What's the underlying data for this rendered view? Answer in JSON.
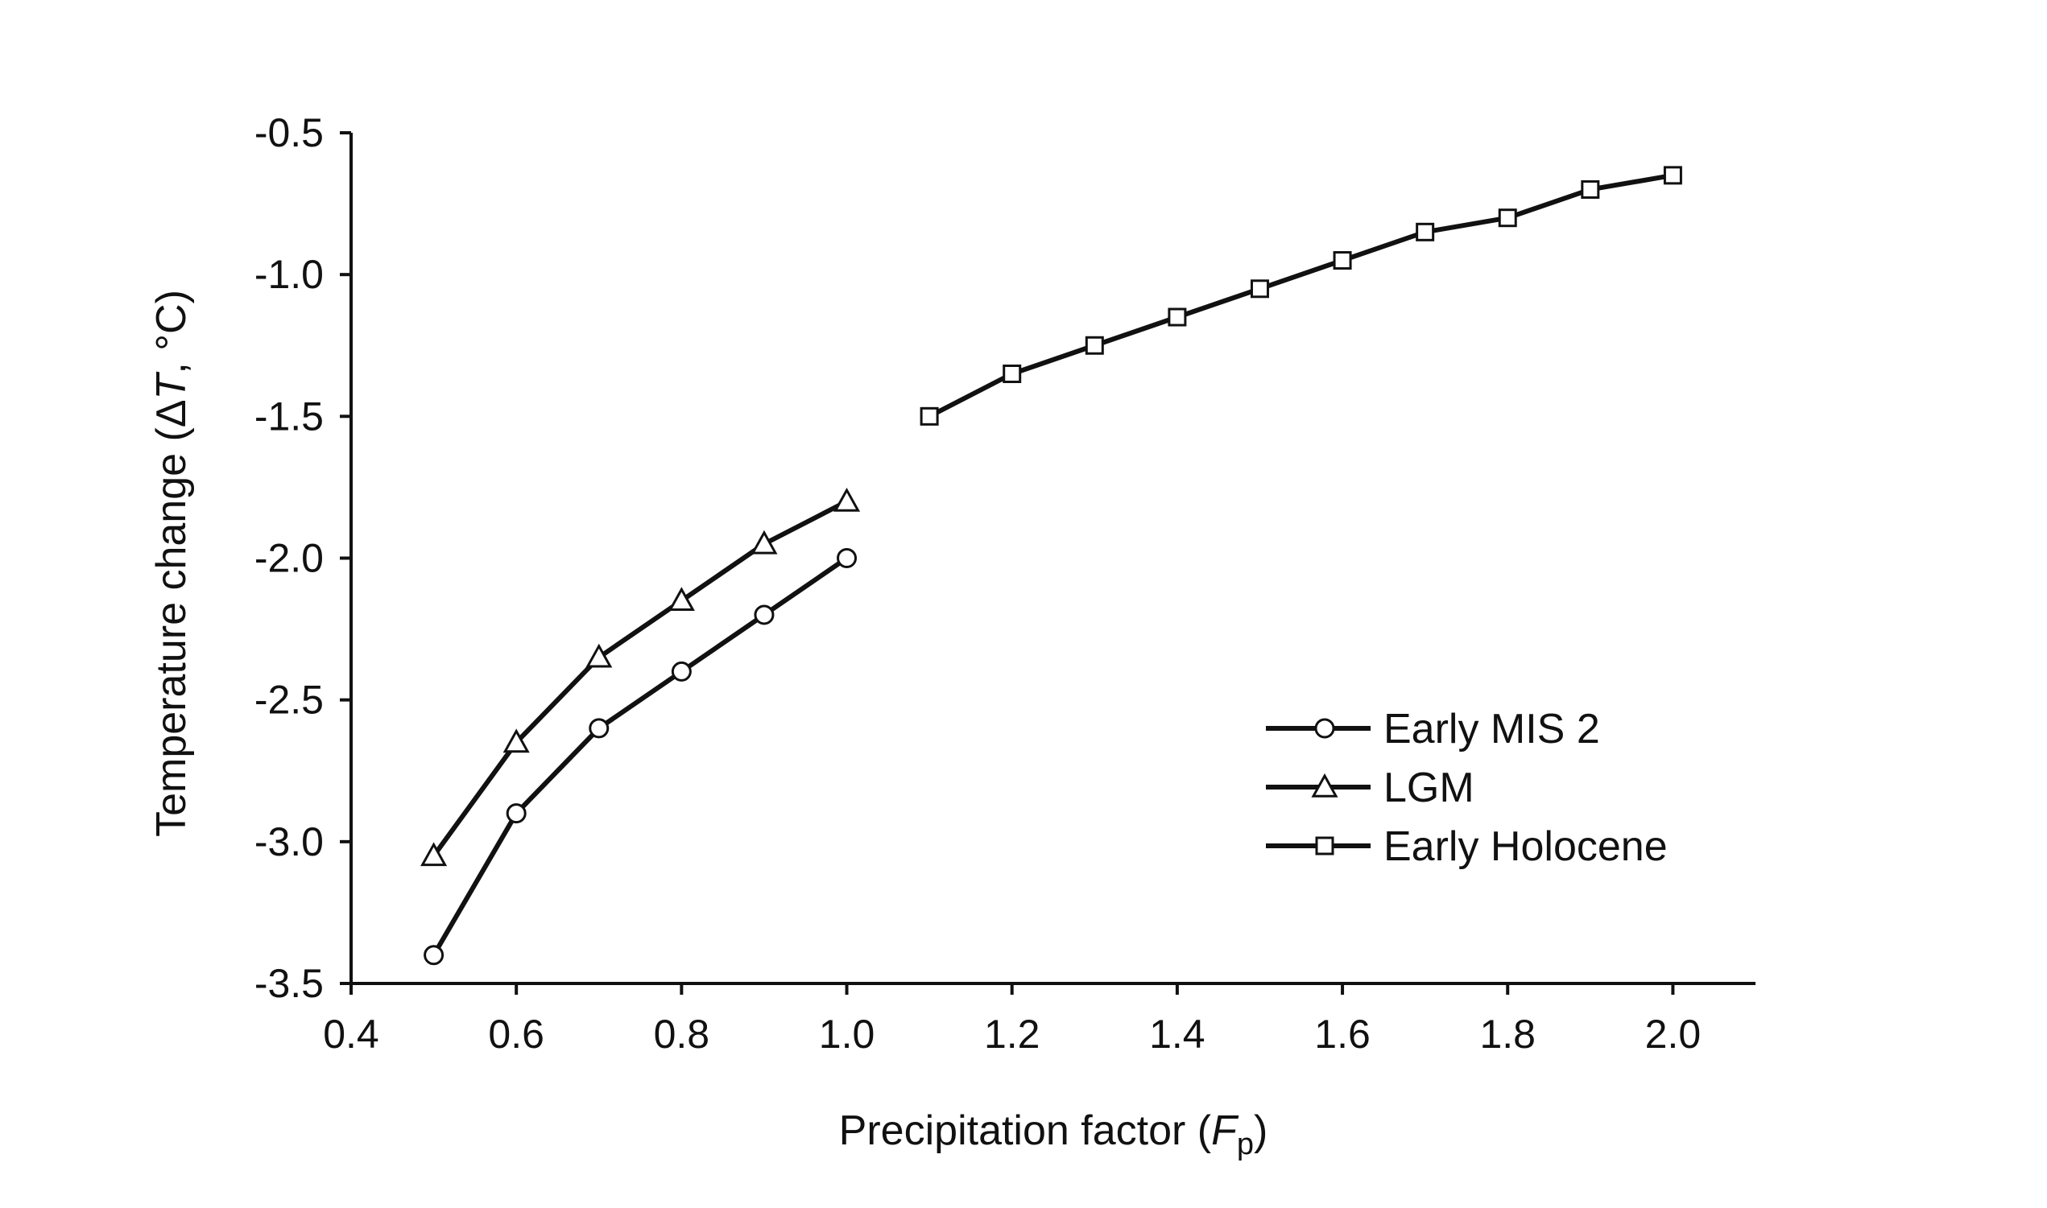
{
  "chart_data": {
    "type": "line",
    "title": "",
    "xlabel_prefix": "Precipitation factor (",
    "xlabel_var": "F",
    "xlabel_sub": "p",
    "xlabel_suffix": ")",
    "ylabel_prefix": "Temperature change (Δ",
    "ylabel_var": "T",
    "ylabel_suffix": ", °C)",
    "xlim": [
      0.4,
      2.1
    ],
    "ylim": [
      -3.5,
      -0.5
    ],
    "xticks": [
      0.4,
      0.6,
      0.8,
      1.0,
      1.2,
      1.4,
      1.6,
      1.8,
      2.0
    ],
    "xtick_labels": [
      "0.4",
      "0.6",
      "0.8",
      "1.0",
      "1.2",
      "1.4",
      "1.6",
      "1.8",
      "2.0"
    ],
    "yticks": [
      -0.5,
      -1.0,
      -1.5,
      -2.0,
      -2.5,
      -3.0,
      -3.5
    ],
    "ytick_labels": [
      "-0.5",
      "-1.0",
      "-1.5",
      "-2.0",
      "-2.5",
      "-3.0",
      "-3.5"
    ],
    "grid": false,
    "legend_position": "right",
    "series": [
      {
        "name": "Early MIS 2",
        "marker": "circle",
        "x": [
          0.5,
          0.6,
          0.7,
          0.8,
          0.9,
          1.0
        ],
        "y": [
          -3.4,
          -2.9,
          -2.6,
          -2.4,
          -2.2,
          -2.0
        ]
      },
      {
        "name": "LGM",
        "marker": "triangle",
        "x": [
          0.5,
          0.6,
          0.7,
          0.8,
          0.9,
          1.0
        ],
        "y": [
          -3.05,
          -2.65,
          -2.35,
          -2.15,
          -1.95,
          -1.8
        ]
      },
      {
        "name": "Early Holocene",
        "marker": "square",
        "x": [
          1.1,
          1.2,
          1.3,
          1.4,
          1.5,
          1.6,
          1.7,
          1.8,
          1.9,
          2.0
        ],
        "y": [
          -1.5,
          -1.35,
          -1.25,
          -1.15,
          -1.05,
          -0.95,
          -0.85,
          -0.8,
          -0.7,
          -0.65
        ]
      }
    ]
  }
}
